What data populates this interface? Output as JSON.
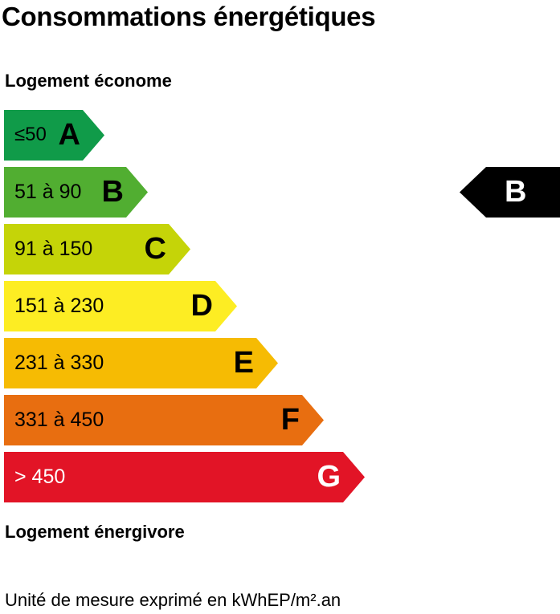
{
  "header": {
    "title": "Consommations énergétiques"
  },
  "labels": {
    "top": "Logement économe",
    "bottom": "Logement énergivore",
    "unit": "Unité de mesure exprimé en kWhEP/m².an"
  },
  "chart_data": {
    "type": "bar",
    "title": "Consommations énergétiques",
    "categories": [
      "A",
      "B",
      "C",
      "D",
      "E",
      "F",
      "G"
    ],
    "ranges": [
      "≤50",
      "51 à 90",
      "91 à 150",
      "151 à 230",
      "231 à 330",
      "331 à 450",
      "> 450"
    ],
    "colors": [
      "#109b49",
      "#51ae31",
      "#c5d408",
      "#fded23",
      "#f6bb03",
      "#e86e10",
      "#e21426"
    ],
    "range_text_colors": [
      "#000000",
      "#000000",
      "#000000",
      "#000000",
      "#000000",
      "#000000",
      "#ffffff"
    ],
    "letter_text_colors": [
      "#000000",
      "#000000",
      "#000000",
      "#000000",
      "#000000",
      "#000000",
      "#ffffff"
    ],
    "selected": "B",
    "marker_color": "#000000"
  }
}
